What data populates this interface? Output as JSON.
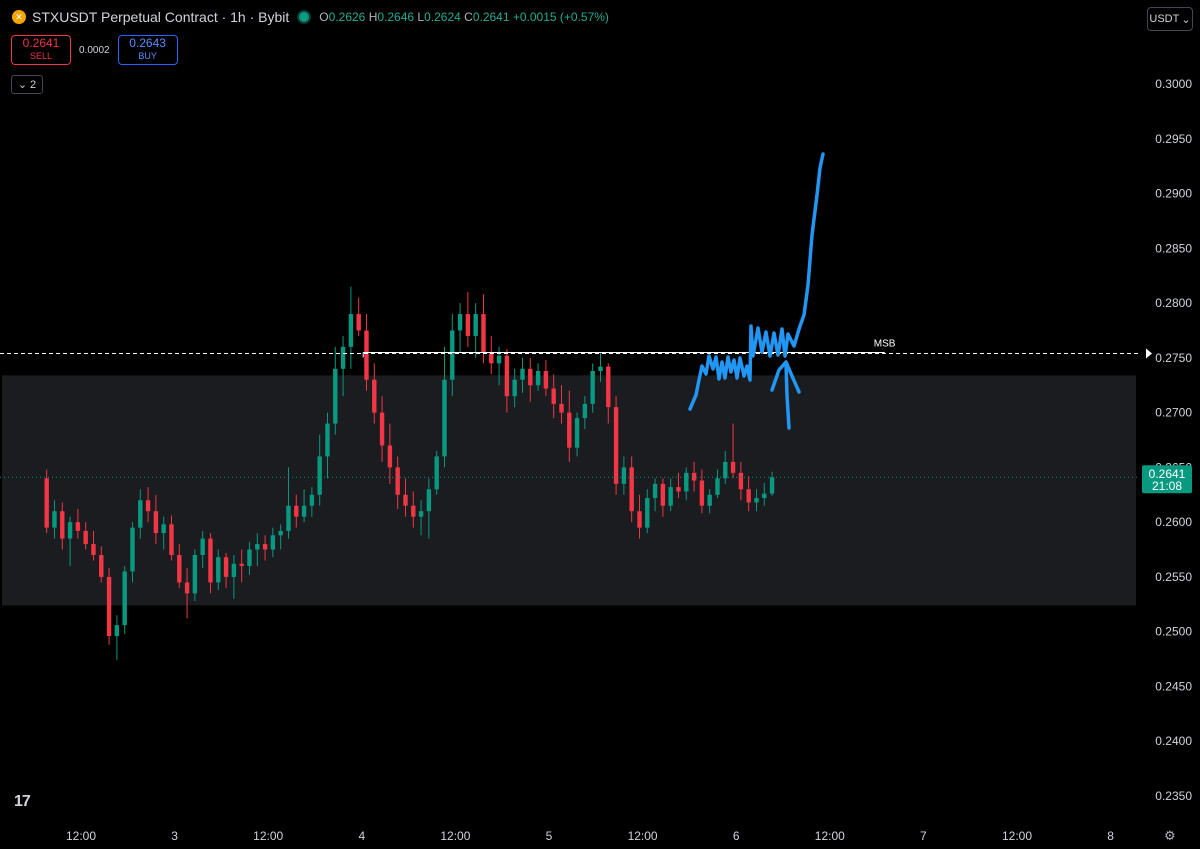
{
  "header": {
    "logo_icon": "bybit-logo-icon",
    "title": "STXUSDT Perpetual Contract · 1h · Bybit",
    "status_icon": "market-open-dot-icon",
    "ohlc": [
      {
        "key": "O",
        "value": "0.2626"
      },
      {
        "key": "H",
        "value": "0.2646"
      },
      {
        "key": "L",
        "value": "0.2624"
      },
      {
        "key": "C",
        "value": "0.2641"
      }
    ],
    "change": "+0.0015 (+0.57%)"
  },
  "trade": {
    "sell_price": "0.2641",
    "sell_label": "SELL",
    "spread": "0.0002",
    "buy_price": "0.2643",
    "buy_label": "BUY"
  },
  "indicators": {
    "count": "2",
    "icon": "chevron-down-icon"
  },
  "currency": {
    "label": "USDT",
    "icon": "chevron-down-icon"
  },
  "branding": {
    "icon": "tradingview-logo-icon",
    "text": "17"
  },
  "settings": {
    "icon": "gear-icon"
  },
  "colors": {
    "up": "#089981",
    "down": "#f23645",
    "zone": "#1b1c20",
    "drawing": "#2196f3",
    "price_tag": "#089981"
  },
  "chart_data": {
    "type": "candlestick",
    "timeframe": "1h",
    "y_ticks": [
      "0.2350",
      "0.2400",
      "0.2450",
      "0.2500",
      "0.2550",
      "0.2600",
      "0.2650",
      "0.2700",
      "0.2750",
      "0.2800",
      "0.2850",
      "0.2900",
      "0.2950",
      "0.3000"
    ],
    "ylim": [
      0.2315,
      0.3035
    ],
    "x_ticks": [
      {
        "label": "12:00",
        "hour": 0
      },
      {
        "label": "3",
        "hour": 12
      },
      {
        "label": "12:00",
        "hour": 24
      },
      {
        "label": "4",
        "hour": 36
      },
      {
        "label": "12:00",
        "hour": 48
      },
      {
        "label": "5",
        "hour": 60
      },
      {
        "label": "12:00",
        "hour": 72
      },
      {
        "label": "6",
        "hour": 84
      },
      {
        "label": "12:00",
        "hour": 96
      },
      {
        "label": "7",
        "hour": 108
      },
      {
        "label": "12:00",
        "hour": 120
      },
      {
        "label": "8",
        "hour": 132
      }
    ],
    "xlim": [
      -4.6,
      137.5
    ],
    "current_price": {
      "label": "0.2641",
      "countdown": "21:08",
      "value": 0.2641
    },
    "msb_level": {
      "label": "MSB",
      "value": 0.2754,
      "from_hour": 34,
      "to_hour": 101
    },
    "zone": {
      "from": 0.2524,
      "to": 0.2734
    },
    "candles_start_hour": -4.4,
    "candles": [
      [
        0.264,
        0.2648,
        0.259,
        0.2595
      ],
      [
        0.2595,
        0.262,
        0.2585,
        0.261
      ],
      [
        0.261,
        0.2618,
        0.2575,
        0.2585
      ],
      [
        0.2585,
        0.2605,
        0.256,
        0.26
      ],
      [
        0.26,
        0.2612,
        0.2585,
        0.2592
      ],
      [
        0.2592,
        0.26,
        0.2575,
        0.258
      ],
      [
        0.258,
        0.2592,
        0.2565,
        0.257
      ],
      [
        0.257,
        0.2578,
        0.2545,
        0.255
      ],
      [
        0.255,
        0.2558,
        0.2488,
        0.2496
      ],
      [
        0.2496,
        0.2515,
        0.2474,
        0.2506
      ],
      [
        0.2506,
        0.256,
        0.2498,
        0.2555
      ],
      [
        0.2555,
        0.26,
        0.2545,
        0.2595
      ],
      [
        0.2595,
        0.263,
        0.2585,
        0.262
      ],
      [
        0.262,
        0.2632,
        0.26,
        0.261
      ],
      [
        0.261,
        0.2625,
        0.258,
        0.259
      ],
      [
        0.259,
        0.2605,
        0.2575,
        0.2598
      ],
      [
        0.2598,
        0.2606,
        0.2565,
        0.257
      ],
      [
        0.257,
        0.258,
        0.254,
        0.2545
      ],
      [
        0.2545,
        0.2558,
        0.2512,
        0.2535
      ],
      [
        0.2535,
        0.2575,
        0.2528,
        0.257
      ],
      [
        0.257,
        0.2592,
        0.2558,
        0.2585
      ],
      [
        0.2585,
        0.259,
        0.2535,
        0.2545
      ],
      [
        0.2545,
        0.2575,
        0.2538,
        0.2568
      ],
      [
        0.2568,
        0.2572,
        0.254,
        0.255
      ],
      [
        0.255,
        0.257,
        0.253,
        0.2562
      ],
      [
        0.2562,
        0.2575,
        0.2545,
        0.256
      ],
      [
        0.256,
        0.2582,
        0.2552,
        0.2575
      ],
      [
        0.2575,
        0.259,
        0.256,
        0.258
      ],
      [
        0.258,
        0.2588,
        0.2565,
        0.2575
      ],
      [
        0.2575,
        0.2595,
        0.2568,
        0.2588
      ],
      [
        0.2588,
        0.2598,
        0.2575,
        0.2592
      ],
      [
        0.2592,
        0.265,
        0.2585,
        0.2615
      ],
      [
        0.2615,
        0.2625,
        0.2595,
        0.2605
      ],
      [
        0.2605,
        0.263,
        0.26,
        0.2615
      ],
      [
        0.2615,
        0.2632,
        0.2605,
        0.2625
      ],
      [
        0.2625,
        0.268,
        0.2615,
        0.266
      ],
      [
        0.266,
        0.27,
        0.264,
        0.269
      ],
      [
        0.269,
        0.276,
        0.268,
        0.274
      ],
      [
        0.274,
        0.277,
        0.2715,
        0.276
      ],
      [
        0.276,
        0.2815,
        0.274,
        0.279
      ],
      [
        0.279,
        0.2805,
        0.277,
        0.2775
      ],
      [
        0.2775,
        0.279,
        0.272,
        0.273
      ],
      [
        0.273,
        0.2745,
        0.269,
        0.27
      ],
      [
        0.27,
        0.2715,
        0.2655,
        0.267
      ],
      [
        0.267,
        0.269,
        0.2635,
        0.265
      ],
      [
        0.265,
        0.266,
        0.2612,
        0.2625
      ],
      [
        0.2625,
        0.264,
        0.2605,
        0.2615
      ],
      [
        0.2615,
        0.2628,
        0.2595,
        0.2605
      ],
      [
        0.2605,
        0.262,
        0.2588,
        0.261
      ],
      [
        0.261,
        0.264,
        0.2585,
        0.263
      ],
      [
        0.263,
        0.2665,
        0.2625,
        0.266
      ],
      [
        0.266,
        0.276,
        0.265,
        0.273
      ],
      [
        0.273,
        0.279,
        0.2715,
        0.2775
      ],
      [
        0.2775,
        0.28,
        0.2755,
        0.279
      ],
      [
        0.279,
        0.281,
        0.276,
        0.277
      ],
      [
        0.277,
        0.28,
        0.275,
        0.279
      ],
      [
        0.279,
        0.2808,
        0.2745,
        0.2755
      ],
      [
        0.2755,
        0.277,
        0.2735,
        0.2745
      ],
      [
        0.2745,
        0.276,
        0.2725,
        0.2752
      ],
      [
        0.2752,
        0.2758,
        0.27,
        0.2715
      ],
      [
        0.2715,
        0.274,
        0.2705,
        0.273
      ],
      [
        0.273,
        0.275,
        0.2718,
        0.274
      ],
      [
        0.274,
        0.275,
        0.271,
        0.2725
      ],
      [
        0.2725,
        0.2745,
        0.272,
        0.2738
      ],
      [
        0.2738,
        0.2748,
        0.2715,
        0.2722
      ],
      [
        0.2722,
        0.2735,
        0.2695,
        0.2708
      ],
      [
        0.2708,
        0.2725,
        0.269,
        0.27
      ],
      [
        0.27,
        0.272,
        0.2655,
        0.2668
      ],
      [
        0.2668,
        0.27,
        0.266,
        0.2695
      ],
      [
        0.2695,
        0.2715,
        0.2685,
        0.2708
      ],
      [
        0.2708,
        0.2745,
        0.27,
        0.2738
      ],
      [
        0.2738,
        0.2755,
        0.2728,
        0.2742
      ],
      [
        0.2742,
        0.2745,
        0.269,
        0.2705
      ],
      [
        0.2705,
        0.2715,
        0.2625,
        0.2635
      ],
      [
        0.2635,
        0.266,
        0.2625,
        0.265
      ],
      [
        0.265,
        0.266,
        0.26,
        0.261
      ],
      [
        0.261,
        0.2625,
        0.2585,
        0.2595
      ],
      [
        0.2595,
        0.263,
        0.259,
        0.2622
      ],
      [
        0.2622,
        0.264,
        0.261,
        0.2635
      ],
      [
        0.2635,
        0.264,
        0.2605,
        0.2615
      ],
      [
        0.2615,
        0.264,
        0.261,
        0.2632
      ],
      [
        0.2632,
        0.2645,
        0.2622,
        0.2628
      ],
      [
        0.2628,
        0.265,
        0.262,
        0.2645
      ],
      [
        0.2645,
        0.2655,
        0.2628,
        0.2638
      ],
      [
        0.2638,
        0.2648,
        0.2608,
        0.2615
      ],
      [
        0.2615,
        0.263,
        0.2608,
        0.2625
      ],
      [
        0.2625,
        0.2648,
        0.2622,
        0.264
      ],
      [
        0.264,
        0.2665,
        0.2635,
        0.2655
      ],
      [
        0.2655,
        0.269,
        0.264,
        0.2645
      ],
      [
        0.2645,
        0.2655,
        0.262,
        0.263
      ],
      [
        0.263,
        0.2642,
        0.261,
        0.2618
      ],
      [
        0.2618,
        0.263,
        0.261,
        0.2622
      ],
      [
        0.2622,
        0.2636,
        0.2615,
        0.2626
      ],
      [
        0.2626,
        0.2646,
        0.2624,
        0.2641
      ]
    ]
  }
}
